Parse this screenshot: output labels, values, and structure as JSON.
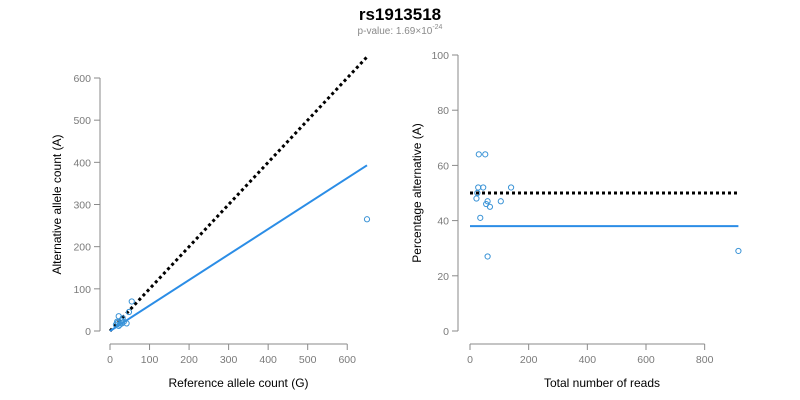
{
  "figure": {
    "title": "rs1913518",
    "subtitle_prefix": "p-value: 1.69×10",
    "subtitle_exponent": "-24"
  },
  "colors": {
    "points": "#3a93d6",
    "fit_line": "#2b8de6",
    "expected_line": "#000000",
    "axis": "#8a8a8a"
  },
  "chart_data": [
    {
      "type": "scatter",
      "title": "",
      "xlabel": "Reference allele count (G)",
      "ylabel": "Alternative allele count (A)",
      "xlim": [
        0,
        650
      ],
      "ylim": [
        0,
        600
      ],
      "xticks": [
        0,
        100,
        200,
        300,
        400,
        500,
        600
      ],
      "yticks": [
        0,
        100,
        200,
        300,
        400,
        500,
        600
      ],
      "grid": false,
      "series": [
        {
          "points": [
            [
              15,
              15
            ],
            [
              18,
              22
            ],
            [
              20,
              20
            ],
            [
              22,
              12
            ],
            [
              22,
              35
            ],
            [
              25,
              15
            ],
            [
              28,
              25
            ],
            [
              30,
              18
            ],
            [
              32,
              30
            ],
            [
              35,
              22
            ],
            [
              42,
              18
            ],
            [
              48,
              45
            ],
            [
              55,
              70
            ],
            [
              650,
              265
            ]
          ]
        }
      ],
      "lines": [
        {
          "kind": "expected",
          "style": "dotted",
          "x": [
            0,
            650
          ],
          "y": [
            0,
            650
          ]
        },
        {
          "kind": "fit",
          "style": "solid",
          "x": [
            0,
            650
          ],
          "y": [
            0,
            393
          ]
        }
      ]
    },
    {
      "type": "scatter",
      "title": "",
      "xlabel": "Total number of reads",
      "ylabel": "Percentage alternative (A)",
      "xlim": [
        0,
        900
      ],
      "ylim": [
        0,
        100
      ],
      "xticks": [
        0,
        200,
        400,
        600,
        800
      ],
      "yticks": [
        0,
        20,
        40,
        60,
        80,
        100
      ],
      "grid": false,
      "series": [
        {
          "points": [
            [
              22,
              48
            ],
            [
              25,
              50
            ],
            [
              28,
              52
            ],
            [
              30,
              64
            ],
            [
              35,
              41
            ],
            [
              45,
              52
            ],
            [
              52,
              64
            ],
            [
              55,
              46
            ],
            [
              60,
              47
            ],
            [
              60,
              27
            ],
            [
              68,
              45
            ],
            [
              105,
              47
            ],
            [
              140,
              52
            ],
            [
              915,
              29
            ]
          ]
        }
      ],
      "lines": [
        {
          "kind": "expected",
          "style": "dotted",
          "x": [
            0,
            915
          ],
          "y": [
            50,
            50
          ]
        },
        {
          "kind": "fit",
          "style": "solid",
          "x": [
            0,
            915
          ],
          "y": [
            38,
            38
          ]
        }
      ]
    }
  ]
}
